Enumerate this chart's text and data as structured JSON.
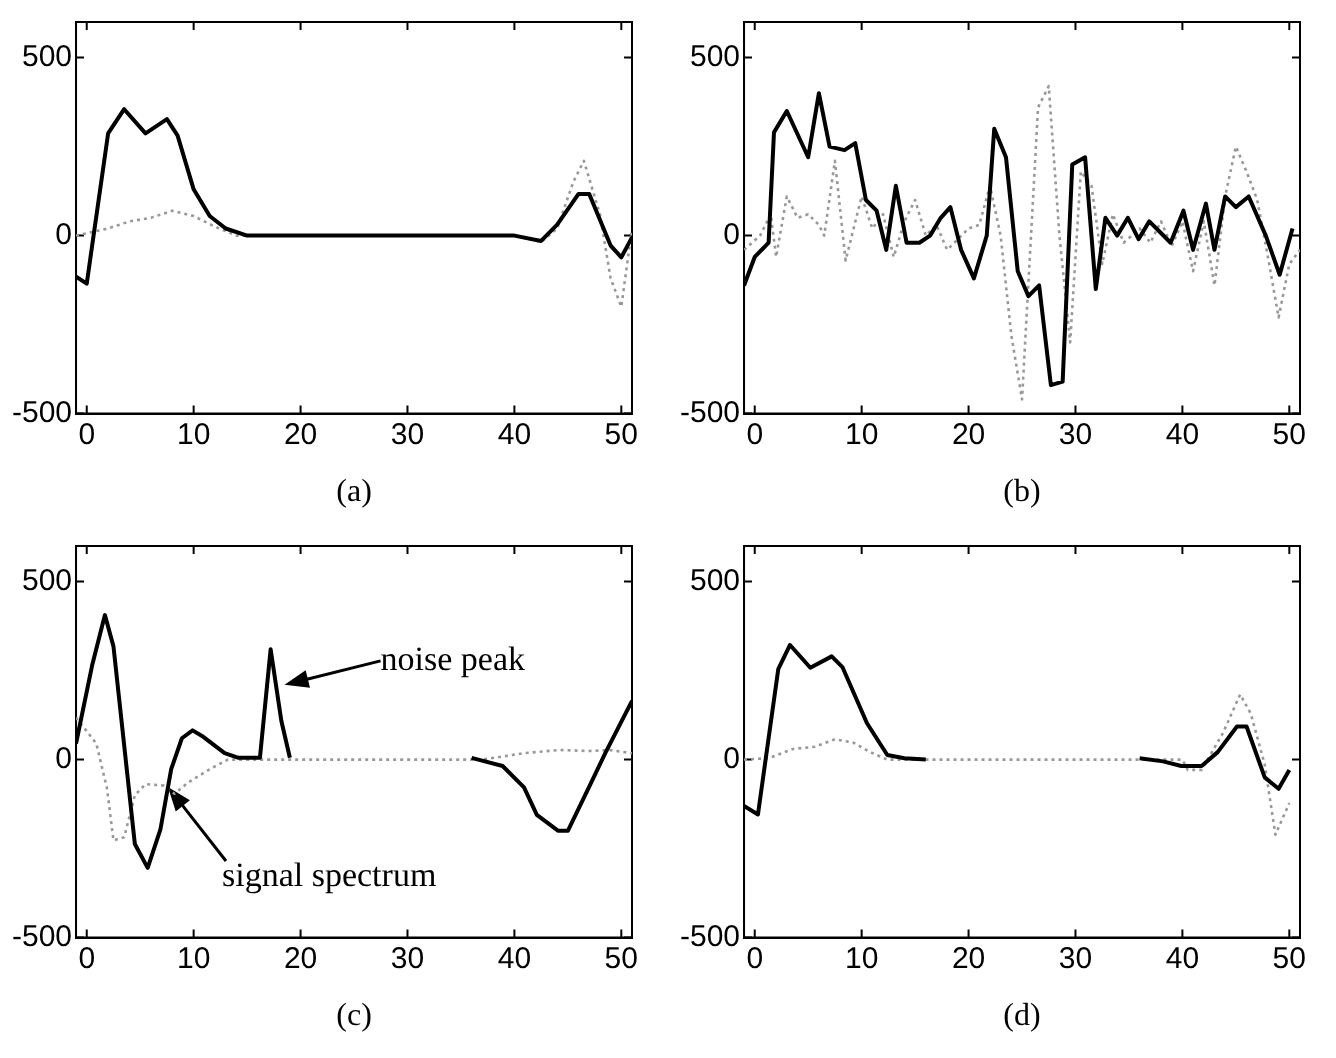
{
  "chart_data": [
    {
      "type": "line",
      "xlabel": "(a)",
      "xlim": [
        -1,
        51
      ],
      "xticks": [
        0,
        10,
        20,
        30,
        40,
        50
      ],
      "ylim": [
        -500,
        600
      ],
      "yticks": [
        -500,
        0,
        500
      ],
      "grid": false,
      "legend": false,
      "marker": "none",
      "series": [
        {
          "color": "#000000",
          "line_style": "solid",
          "x": [
            -1,
            0,
            2,
            3.5,
            5.5,
            7.5,
            8.5,
            10,
            11.5,
            13,
            15,
            40,
            42.5,
            44,
            46,
            47,
            49,
            50,
            51
          ],
          "values": [
            -115,
            -135,
            287,
            355,
            287,
            327,
            281,
            130,
            55,
            20,
            0,
            0,
            -15,
            31,
            117,
            117,
            -28,
            -61,
            -5
          ]
        },
        {
          "color": "#999999",
          "line_style": "dotted",
          "x": [
            -1,
            2,
            4,
            6,
            8,
            10,
            12,
            14,
            40,
            42.5,
            44,
            45.5,
            46.5,
            48,
            49,
            50,
            51
          ],
          "values": [
            0,
            20,
            40,
            50,
            70,
            55,
            25,
            0,
            0,
            -18,
            20,
            150,
            210,
            60,
            -120,
            -200,
            20
          ]
        }
      ]
    },
    {
      "type": "line",
      "xlabel": "(b)",
      "xlim": [
        -1,
        51
      ],
      "xticks": [
        0,
        10,
        20,
        30,
        40,
        50
      ],
      "ylim": [
        -500,
        600
      ],
      "yticks": [
        -500,
        0,
        500
      ],
      "grid": false,
      "legend": false,
      "marker": "none",
      "series": [
        {
          "color": "#000000",
          "line_style": "solid",
          "x": [
            -1,
            0,
            1.3,
            1.8,
            3,
            5,
            6,
            7,
            8.4,
            9.4,
            10.4,
            11.4,
            12.3,
            13.2,
            14.2,
            15.4,
            16.4,
            17.4,
            18.3,
            19.3,
            20.5,
            21.7,
            22.4,
            23.5,
            24.6,
            25.6,
            26.6,
            27.7,
            28.8,
            29.7,
            30.9,
            31.9,
            32.8,
            33.9,
            34.9,
            35.9,
            36.9,
            37.9,
            38.9,
            40.1,
            41,
            42.2,
            43,
            44,
            45,
            46.2,
            47.8,
            49.1,
            50.3
          ],
          "values": [
            -140,
            -60,
            -20,
            290,
            350,
            220,
            400,
            250,
            240,
            260,
            100,
            70,
            -40,
            140,
            -20,
            -20,
            0,
            50,
            80,
            -40,
            -120,
            0,
            300,
            220,
            -100,
            -170,
            -140,
            -420,
            -410,
            200,
            220,
            -150,
            50,
            0,
            50,
            -10,
            40,
            10,
            -20,
            70,
            -40,
            90,
            -40,
            110,
            80,
            110,
            0,
            -110,
            20
          ]
        },
        {
          "color": "#999999",
          "line_style": "dotted",
          "x": [
            -1,
            0.5,
            1.5,
            2,
            3,
            4,
            5,
            6,
            6.5,
            7.5,
            8.5,
            10,
            11,
            12,
            13,
            14,
            15,
            16,
            17,
            18,
            20,
            21,
            22,
            23,
            24,
            25,
            26.5,
            27.5,
            28.5,
            29.5,
            30.5,
            31.5,
            32.5,
            33.5,
            34.5,
            36,
            37,
            38,
            39,
            40,
            41,
            42,
            43,
            44,
            45,
            46,
            47,
            48,
            49,
            50,
            51
          ],
          "values": [
            -40,
            0,
            60,
            -60,
            110,
            50,
            60,
            30,
            0,
            210,
            -70,
            110,
            20,
            60,
            -60,
            40,
            100,
            0,
            30,
            -40,
            20,
            30,
            140,
            0,
            -280,
            -460,
            360,
            420,
            0,
            -300,
            180,
            140,
            -80,
            60,
            -20,
            20,
            -20,
            40,
            -30,
            40,
            -100,
            40,
            -140,
            110,
            250,
            180,
            100,
            -60,
            -230,
            -80,
            -40
          ]
        }
      ]
    },
    {
      "type": "line",
      "xlabel": "(c)",
      "xlim": [
        -1,
        51
      ],
      "xticks": [
        0,
        10,
        20,
        30,
        40,
        50
      ],
      "ylim": [
        -500,
        600
      ],
      "yticks": [
        -500,
        0,
        500
      ],
      "grid": false,
      "legend": false,
      "marker": "none",
      "annotations": [
        {
          "text": "noise peak",
          "x": 18.5,
          "y": 210
        },
        {
          "text": "signal spectrum",
          "x": 7.6,
          "y": -77
        }
      ],
      "series": [
        {
          "color": "#000000",
          "line_style": "solid",
          "x": [
            -1,
            0.5,
            1.7,
            2.5,
            4.5,
            5.7,
            6.9,
            7.9,
            8.9,
            9.9,
            10.9,
            12.9,
            14.2,
            16.2,
            17.2,
            18.2,
            19,
            27,
            36,
            38.9,
            40.9,
            42.1,
            44.1,
            45,
            46.9,
            48.5,
            51
          ],
          "values": [
            45,
            264,
            406,
            318,
            -237,
            -304,
            -195,
            -27,
            60,
            82,
            64,
            18,
            5,
            5,
            310,
            109,
            5,
            null,
            5,
            -18,
            -78,
            -155,
            -200,
            -200,
            -82,
            18,
            165
          ]
        },
        {
          "color": "#999999",
          "line_style": "dotted",
          "x": [
            -1,
            0.9,
            1.9,
            2.5,
            3.5,
            4.5,
            5.5,
            7.2,
            8.2,
            9.5,
            11.5,
            13.2,
            37,
            40.9,
            44.2,
            46.9,
            48.9,
            51
          ],
          "values": [
            118,
            45,
            -82,
            -227,
            -218,
            -100,
            -69,
            -73,
            -96,
            -64,
            -27,
            0,
            0,
            18,
            27,
            24,
            27,
            18
          ]
        }
      ]
    },
    {
      "type": "line",
      "xlabel": "(d)",
      "xlim": [
        -1,
        51
      ],
      "xticks": [
        0,
        10,
        20,
        30,
        40,
        50
      ],
      "ylim": [
        -500,
        600
      ],
      "yticks": [
        -500,
        0,
        500
      ],
      "grid": false,
      "legend": false,
      "marker": "none",
      "series": [
        {
          "color": "#000000",
          "line_style": "solid",
          "x": [
            -1,
            0.3,
            2.2,
            3.3,
            5.2,
            7.2,
            8.2,
            10.5,
            12.4,
            14,
            16,
            26,
            36,
            38.2,
            39.9,
            41.8,
            43.3,
            45.1,
            46,
            47.7,
            49,
            50
          ],
          "values": [
            -130,
            -154,
            254,
            322,
            258,
            290,
            260,
            102,
            13,
            4,
            0,
            null,
            4,
            -5,
            -18,
            -18,
            21,
            93,
            93,
            -50,
            -82,
            -29
          ]
        },
        {
          "color": "#999999",
          "line_style": "dotted",
          "x": [
            -1,
            1.3,
            3.6,
            5.6,
            7.5,
            9.2,
            10.8,
            12.4,
            40,
            40.5,
            41.8,
            43.8,
            45.4,
            46.4,
            47.7,
            48.7,
            50
          ],
          "values": [
            0,
            4,
            30,
            36,
            57,
            48,
            21,
            0,
            0,
            -29,
            -29,
            75,
            183,
            129,
            -14,
            -211,
            -122
          ]
        }
      ]
    }
  ]
}
